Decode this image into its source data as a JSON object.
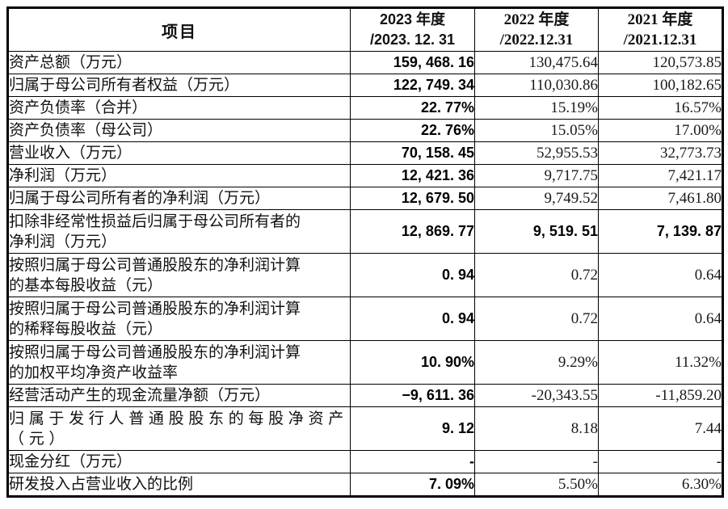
{
  "colors": {
    "background": "#ffffff",
    "border": "#000000",
    "text": "#111111"
  },
  "table": {
    "columns": [
      {
        "header": "项目"
      },
      {
        "header": "2023 年度\n/2023. 12. 31"
      },
      {
        "header": "2022 年度\n/2022.12.31"
      },
      {
        "header": "2021 年度\n/2021.12.31"
      }
    ],
    "rows": [
      {
        "label": "资产总额（万元）",
        "v2023": "159, 468. 16",
        "v2022": "130,475.64",
        "v2021": "120,573.85"
      },
      {
        "label": "归属于母公司所有者权益（万元）",
        "v2023": "122, 749. 34",
        "v2022": "110,030.86",
        "v2021": "100,182.65"
      },
      {
        "label": "资产负债率（合并）",
        "v2023": "22. 77%",
        "v2022": "15.19%",
        "v2021": "16.57%"
      },
      {
        "label": "资产负债率（母公司）",
        "v2023": "22. 76%",
        "v2022": "15.05%",
        "v2021": "17.00%"
      },
      {
        "label": "营业收入（万元）",
        "v2023": "70, 158. 45",
        "v2022": "52,955.53",
        "v2021": "32,773.73"
      },
      {
        "label": "净利润（万元）",
        "v2023": "12, 421. 36",
        "v2022": "9,717.75",
        "v2021": "7,421.17"
      },
      {
        "label": "归属于母公司所有者的净利润（万元）",
        "v2023": "12, 679. 50",
        "v2022": "9,749.52",
        "v2021": "7,461.80"
      },
      {
        "label": "扣除非经常性损益后归属于母公司所有者的\n净利润（万元）",
        "v2023": "12, 869. 77",
        "v2022": "9, 519. 51",
        "v2021": "7, 139. 87",
        "strong_all": true
      },
      {
        "label": "按照归属于母公司普通股股东的净利润计算\n的基本每股收益（元）",
        "v2023": "0. 94",
        "v2022": "0.72",
        "v2021": "0.64"
      },
      {
        "label": "按照归属于母公司普通股股东的净利润计算\n的稀释每股收益（元）",
        "v2023": "0. 94",
        "v2022": "0.72",
        "v2021": "0.64"
      },
      {
        "label": "按照归属于母公司普通股股东的净利润计算\n的加权平均净资产收益率",
        "v2023": "10. 90%",
        "v2022": "9.29%",
        "v2021": "11.32%"
      },
      {
        "label": "经营活动产生的现金流量净额（万元）",
        "v2023": "−9, 611. 36",
        "v2022": "-20,343.55",
        "v2021": "-11,859.20"
      },
      {
        "label": "归属于发行人普通股股东的每股净资产\n（元）",
        "v2023": "9. 12",
        "v2022": "8.18",
        "v2021": "7.44",
        "spaced_label": true
      },
      {
        "label": "现金分红（万元）",
        "v2023": "-",
        "v2022": "-",
        "v2021": "-"
      },
      {
        "label": "研发投入占营业收入的比例",
        "v2023": "7. 09%",
        "v2022": "5.50%",
        "v2021": "6.30%"
      }
    ]
  }
}
